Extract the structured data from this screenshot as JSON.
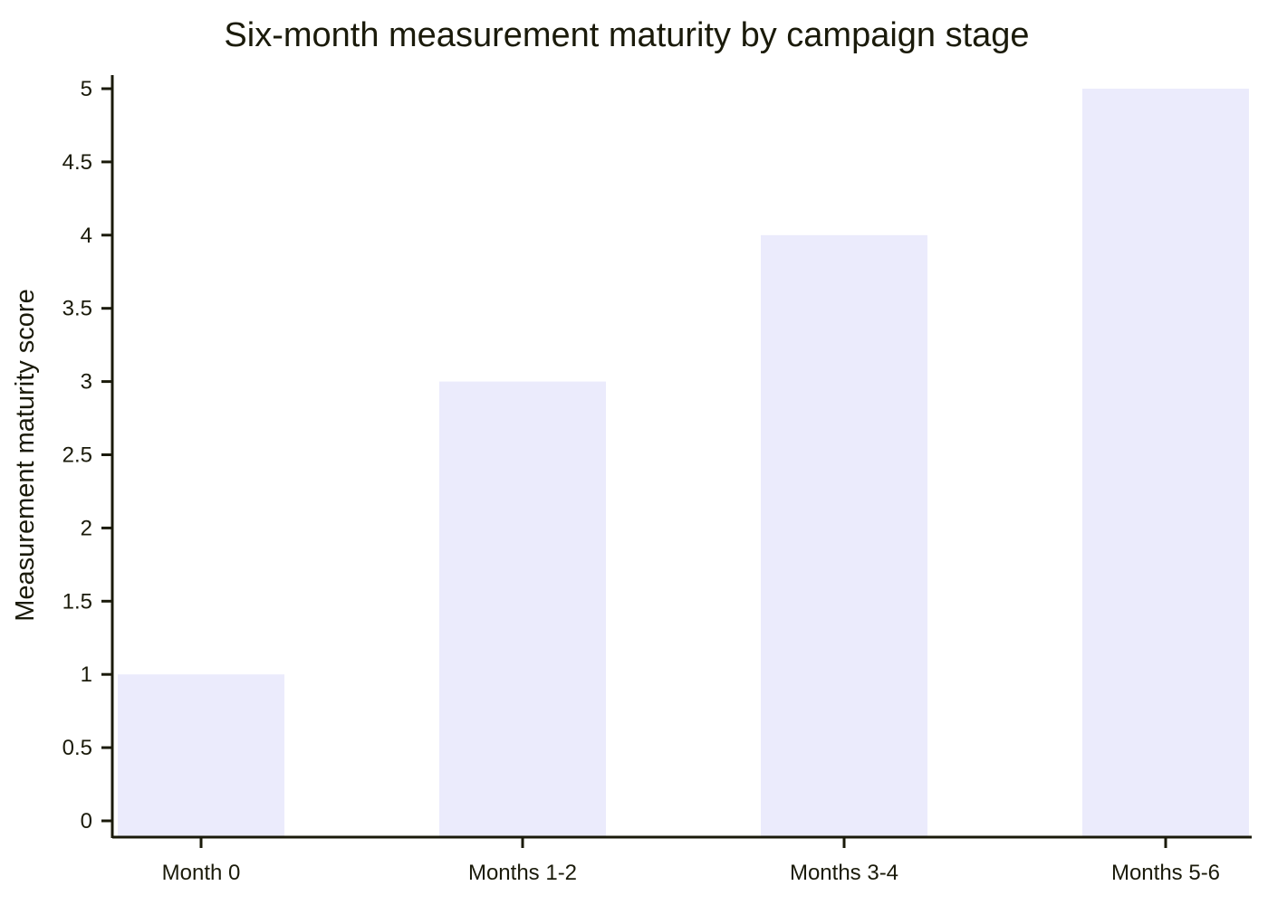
{
  "chart_data": {
    "type": "bar",
    "title": "Six-month measurement maturity by campaign stage",
    "xlabel": "",
    "ylabel": "Measurement maturity score",
    "categories": [
      "Month 0",
      "Months 1-2",
      "Months 3-4",
      "Months 5-6"
    ],
    "values": [
      1,
      3,
      4,
      5
    ],
    "ylim": [
      0,
      5
    ],
    "yticks": [
      0,
      0.5,
      1,
      1.5,
      2,
      2.5,
      3,
      3.5,
      4,
      4.5,
      5
    ],
    "ytick_labels": [
      "0",
      "0.5",
      "1",
      "1.5",
      "2",
      "2.5",
      "3",
      "3.5",
      "4",
      "4.5",
      "5"
    ],
    "grid": false,
    "legend": "none",
    "colors": {
      "bar": "#ebebfc",
      "axis": "#1a1a0a",
      "text": "#1a1a0a"
    }
  }
}
